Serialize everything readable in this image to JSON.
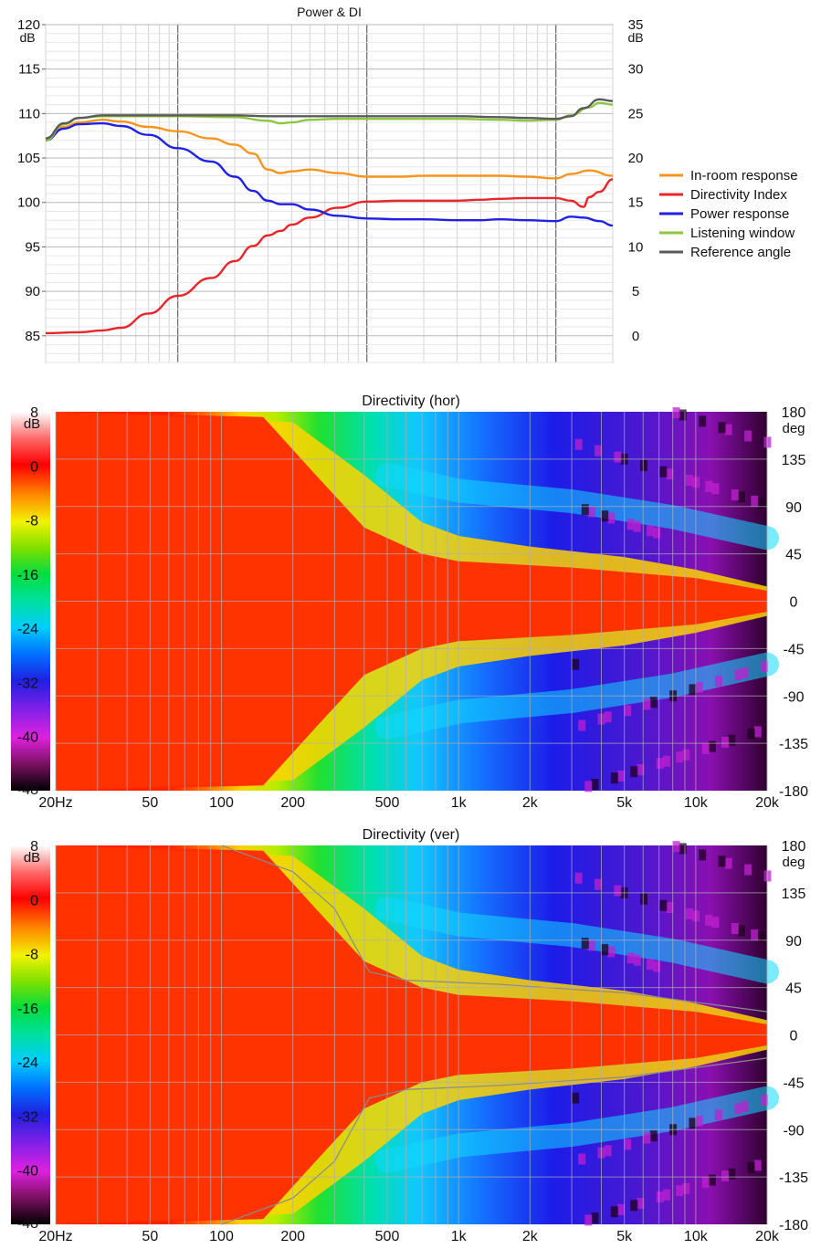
{
  "chart_data": [
    {
      "type": "line",
      "title": "Power & DI",
      "xscale": "log",
      "xlim": [
        20,
        20000
      ],
      "ylim": [
        82,
        120
      ],
      "y2lim": [
        -3,
        35
      ],
      "yunit": "dB",
      "y2unit": "dB",
      "yticks": [
        "120",
        "115",
        "110",
        "105",
        "100",
        "95",
        "90",
        "85"
      ],
      "y2ticks": [
        "35",
        "30",
        "25",
        "20",
        "15",
        "10",
        "5",
        "0"
      ],
      "grid": true,
      "legend_position": "right",
      "series": [
        {
          "name": "In-room response",
          "color": "#f7941d",
          "axis": "left",
          "x": [
            20,
            25,
            30,
            40,
            50,
            70,
            100,
            150,
            200,
            250,
            300,
            350,
            400,
            500,
            700,
            1000,
            1500,
            2000,
            3000,
            4000,
            5000,
            7000,
            10000,
            12000,
            15000,
            20000
          ],
          "y": [
            107,
            108.5,
            109,
            109.3,
            109.1,
            108.5,
            108,
            107.2,
            106.5,
            105.5,
            103.7,
            103.3,
            103.5,
            103.7,
            103.3,
            102.9,
            102.9,
            103,
            103,
            103,
            103,
            102.9,
            102.7,
            103.2,
            103.6,
            103
          ]
        },
        {
          "name": "Directivity Index",
          "color": "#e8252a",
          "axis": "right",
          "x": [
            20,
            30,
            40,
            50,
            70,
            100,
            150,
            200,
            250,
            300,
            350,
            400,
            500,
            700,
            1000,
            1500,
            2000,
            3000,
            4000,
            5000,
            7000,
            10000,
            12000,
            14000,
            15000,
            17000,
            20000
          ],
          "y": [
            0.3,
            0.4,
            0.6,
            0.9,
            2.5,
            4.5,
            6.5,
            8.4,
            10.1,
            11.3,
            11.8,
            12.5,
            13.3,
            14.4,
            15.1,
            15.2,
            15.2,
            15.2,
            15.3,
            15.4,
            15.5,
            15.5,
            15.2,
            14.5,
            15.6,
            16.2,
            17.6
          ]
        },
        {
          "name": "Power response",
          "color": "#1f22e6",
          "axis": "left",
          "x": [
            20,
            25,
            30,
            40,
            50,
            70,
            100,
            150,
            200,
            250,
            300,
            350,
            400,
            500,
            700,
            1000,
            1500,
            2000,
            3000,
            4000,
            5000,
            7000,
            10000,
            12000,
            14000,
            17000,
            20000
          ],
          "y": [
            107,
            108.3,
            108.8,
            108.9,
            108.6,
            107.6,
            106.1,
            104.6,
            102.9,
            101.3,
            100.2,
            99.8,
            99.8,
            99.2,
            98.5,
            98.2,
            98.1,
            98.1,
            98,
            98,
            98.1,
            98,
            97.9,
            98.4,
            98.3,
            97.9,
            97.4
          ]
        },
        {
          "name": "Listening window",
          "color": "#8dc63f",
          "axis": "left",
          "x": [
            20,
            25,
            30,
            40,
            50,
            70,
            100,
            200,
            300,
            350,
            400,
            500,
            700,
            1000,
            1500,
            2000,
            3000,
            5000,
            7000,
            10000,
            12000,
            15000,
            17000,
            20000
          ],
          "y": [
            107,
            108.8,
            109.5,
            109.7,
            109.7,
            109.7,
            109.7,
            109.6,
            109.2,
            108.9,
            109,
            109.3,
            109.4,
            109.4,
            109.4,
            109.4,
            109.4,
            109.3,
            109.2,
            109.3,
            109.8,
            110.7,
            111.2,
            111
          ]
        },
        {
          "name": "Reference angle",
          "color": "#5a5a5a",
          "axis": "left",
          "x": [
            20,
            25,
            30,
            40,
            50,
            70,
            100,
            200,
            300,
            500,
            700,
            1000,
            2000,
            3000,
            5000,
            7000,
            10000,
            12000,
            14000,
            17000,
            20000
          ],
          "y": [
            107.2,
            108.9,
            109.5,
            109.8,
            109.8,
            109.8,
            109.8,
            109.8,
            109.7,
            109.7,
            109.7,
            109.7,
            109.7,
            109.7,
            109.6,
            109.5,
            109.4,
            109.7,
            110.6,
            111.6,
            111.4
          ]
        }
      ]
    },
    {
      "type": "heatmap",
      "title": "Directivity (hor)",
      "xscale": "log",
      "xlim": [
        20,
        20000
      ],
      "ylim": [
        -180,
        180
      ],
      "yunit": "deg",
      "xticks": [
        "20Hz",
        "50",
        "100",
        "200",
        "500",
        "1k",
        "2k",
        "5k",
        "10k",
        "20k"
      ],
      "xtick_values": [
        20,
        50,
        100,
        200,
        500,
        1000,
        2000,
        5000,
        10000,
        20000
      ],
      "yticks": [
        "180",
        "135",
        "90",
        "45",
        "0",
        "-45",
        "-90",
        "-135",
        "-180"
      ],
      "colorbar": {
        "unit": "dB",
        "ticks": [
          "8",
          "0",
          "-8",
          "-16",
          "-24",
          "-32",
          "-40",
          "-48"
        ],
        "range": [
          -48,
          8
        ]
      },
      "contours": false
    },
    {
      "type": "heatmap",
      "title": "Directivity (ver)",
      "xscale": "log",
      "xlim": [
        20,
        20000
      ],
      "ylim": [
        -180,
        180
      ],
      "yunit": "deg",
      "xticks": [
        "20Hz",
        "50",
        "100",
        "200",
        "500",
        "1k",
        "2k",
        "5k",
        "10k",
        "20k"
      ],
      "xtick_values": [
        20,
        50,
        100,
        200,
        500,
        1000,
        2000,
        5000,
        10000,
        20000
      ],
      "yticks": [
        "180",
        "135",
        "90",
        "45",
        "0",
        "-45",
        "-90",
        "-135",
        "-180"
      ],
      "colorbar": {
        "unit": "dB",
        "ticks": [
          "8",
          "0",
          "-8",
          "-16",
          "-24",
          "-32",
          "-40",
          "-48"
        ],
        "range": [
          -48,
          8
        ]
      },
      "contours": true
    }
  ]
}
